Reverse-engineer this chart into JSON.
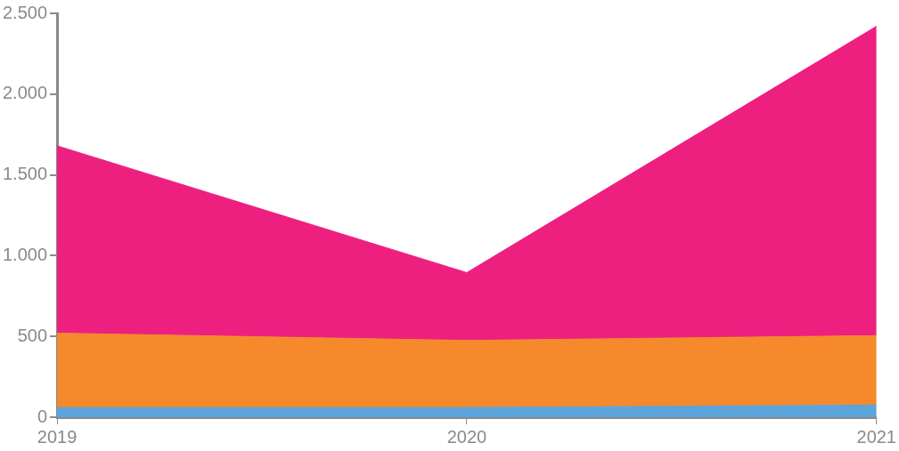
{
  "chart_data": {
    "type": "area",
    "stacked": true,
    "categories": [
      "2019",
      "2020",
      "2021"
    ],
    "series": [
      {
        "color": "#5ba4dc",
        "values": [
          60,
          60,
          75
        ]
      },
      {
        "color": "#f5892b",
        "values": [
          460,
          415,
          430
        ]
      },
      {
        "color": "#ed2080",
        "values": [
          1160,
          420,
          1915
        ]
      }
    ],
    "ylim": [
      0,
      2500
    ],
    "yticks": [
      {
        "value": 0,
        "label": "0"
      },
      {
        "value": 500,
        "label": "500"
      },
      {
        "value": 1000,
        "label": "1.000"
      },
      {
        "value": 1500,
        "label": "1.500"
      },
      {
        "value": 2000,
        "label": "2.000"
      },
      {
        "value": 2500,
        "label": "2.500"
      }
    ],
    "grid": false,
    "legend": false
  }
}
